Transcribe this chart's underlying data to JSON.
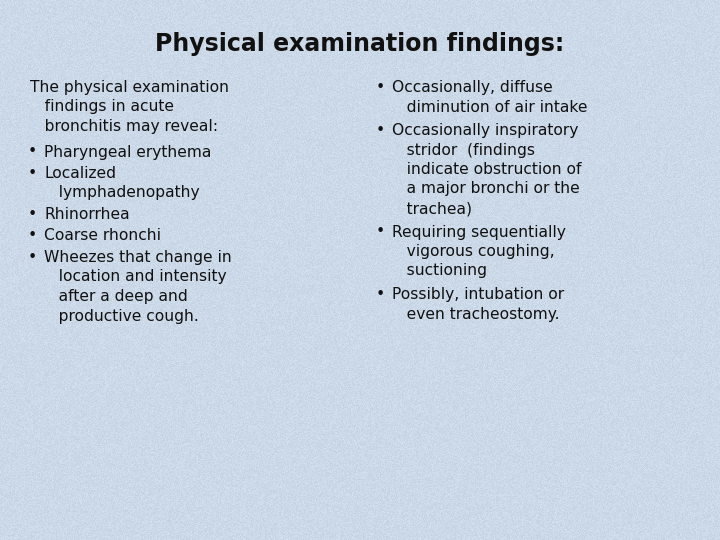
{
  "title": "Physical examination findings:",
  "bg_color": "#ccd9e8",
  "text_color": "#111111",
  "title_fontsize": 17,
  "body_fontsize": 11.2,
  "font_family": "Georgia",
  "left_intro_lines": [
    "The physical examination",
    "   findings in acute",
    "   bronchitis may reveal:"
  ],
  "left_bullets": [
    [
      "Pharyngeal erythema"
    ],
    [
      "Localized",
      "   lymphadenopathy"
    ],
    [
      "Rhinorrhea"
    ],
    [
      "Coarse rhonchi"
    ],
    [
      "Wheezes that change in",
      "   location and intensity",
      "   after a deep and",
      "   productive cough."
    ]
  ],
  "right_bullets": [
    [
      "Occasionally, diffuse",
      "   diminution of air intake"
    ],
    [
      "Occasionally inspiratory",
      "   stridor  (findings",
      "   indicate obstruction of",
      "   a major bronchi or the",
      "   trachea)"
    ],
    [
      "Requiring sequentially",
      "   vigorous coughing,",
      "   suctioning"
    ],
    [
      "Possibly, intubation or",
      "   even tracheostomy."
    ]
  ],
  "noise_seed": 42,
  "noise_alpha": 0.18
}
